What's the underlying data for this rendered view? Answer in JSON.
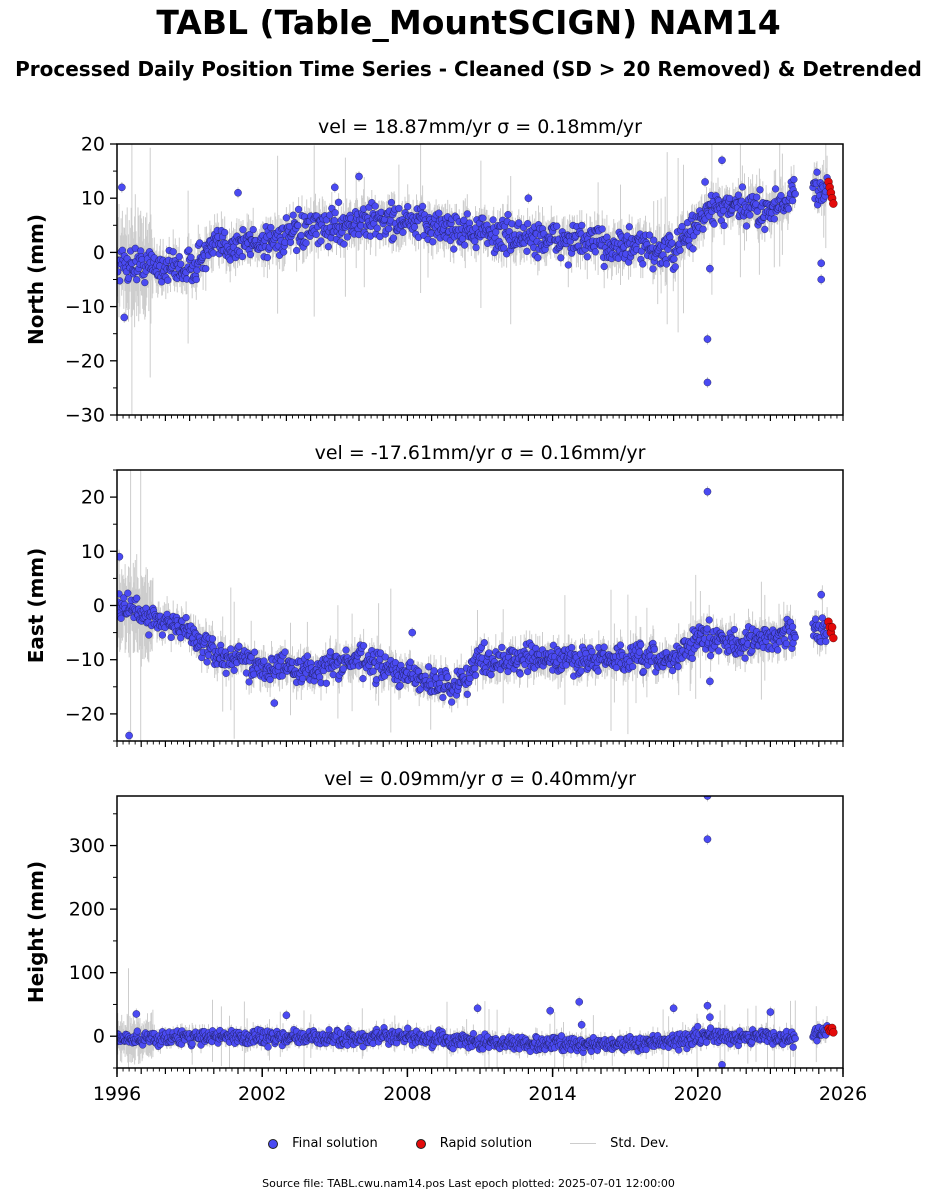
{
  "title": "TABL (Table_MountSCIGN) NAM14",
  "subtitle": "Processed Daily Position Time Series - Cleaned (SD > 20 Removed) & Detrended",
  "legend": {
    "final": "Final solution",
    "rapid": "Rapid solution",
    "std": "Std. Dev."
  },
  "source_note": "Source file: TABL.cwu.nam14.pos  Last epoch plotted: 2025-07-01 12:00:00",
  "colors": {
    "final": "#4a4af2",
    "rapid": "#e30b0b",
    "std": "#c8c8c8"
  },
  "chart_data": [
    {
      "type": "scatter",
      "title": "vel = 18.87mm/yr   σ = 0.18mm/yr",
      "ylabel": "North (mm)",
      "xlim": [
        1996,
        2026
      ],
      "ylim": [
        -30,
        20
      ],
      "yticks": [
        -30,
        -20,
        -10,
        0,
        10,
        20
      ],
      "xticks": [],
      "trend": [
        [
          1996,
          -2
        ],
        [
          1999,
          -3
        ],
        [
          2000,
          1
        ],
        [
          2002,
          2
        ],
        [
          2005,
          5
        ],
        [
          2007,
          6
        ],
        [
          2009,
          5
        ],
        [
          2012,
          3
        ],
        [
          2015,
          2
        ],
        [
          2017,
          1
        ],
        [
          2019,
          0
        ],
        [
          2020.5,
          8
        ],
        [
          2023,
          8
        ],
        [
          2024,
          11
        ],
        [
          2025.5,
          12
        ]
      ],
      "noise": 2.2,
      "outliers": [
        [
          1996.2,
          12
        ],
        [
          1996.3,
          -12
        ],
        [
          2001,
          11
        ],
        [
          2005,
          12
        ],
        [
          2006,
          14
        ],
        [
          2013,
          10
        ],
        [
          2020.3,
          13
        ],
        [
          2020.4,
          -16
        ],
        [
          2020.4,
          -24
        ],
        [
          2020.5,
          -3
        ],
        [
          2021,
          17
        ],
        [
          2025.1,
          -5
        ],
        [
          2025.1,
          -2
        ]
      ],
      "rapid": [
        [
          2025.4,
          13
        ],
        [
          2025.45,
          12
        ],
        [
          2025.5,
          11
        ],
        [
          2025.55,
          10
        ],
        [
          2025.6,
          9
        ]
      ]
    },
    {
      "type": "scatter",
      "title": "vel = -17.61mm/yr   σ = 0.16mm/yr",
      "ylabel": "East (mm)",
      "xlim": [
        1996,
        2026
      ],
      "ylim": [
        -25,
        25
      ],
      "yticks": [
        -20,
        -10,
        0,
        10,
        20
      ],
      "xticks": [],
      "trend": [
        [
          1996,
          0
        ],
        [
          1998,
          -3
        ],
        [
          1999,
          -5
        ],
        [
          2000,
          -9
        ],
        [
          2002,
          -11
        ],
        [
          2004,
          -12
        ],
        [
          2006,
          -10
        ],
        [
          2008,
          -13
        ],
        [
          2010,
          -15
        ],
        [
          2011,
          -10
        ],
        [
          2014,
          -10
        ],
        [
          2017,
          -10
        ],
        [
          2019,
          -10
        ],
        [
          2020,
          -6
        ],
        [
          2022,
          -7
        ],
        [
          2024,
          -5
        ],
        [
          2025.5,
          -4
        ]
      ],
      "noise": 1.8,
      "outliers": [
        [
          1996.1,
          9
        ],
        [
          1996.5,
          -24
        ],
        [
          2002.5,
          -18
        ],
        [
          2008.2,
          -5
        ],
        [
          2020.4,
          21
        ],
        [
          2020.5,
          -14
        ],
        [
          2025.1,
          2
        ]
      ],
      "rapid": [
        [
          2025.4,
          -3
        ],
        [
          2025.45,
          -4
        ],
        [
          2025.5,
          -5
        ],
        [
          2025.55,
          -4
        ],
        [
          2025.6,
          -6
        ]
      ]
    },
    {
      "type": "scatter",
      "title": "vel = 0.09mm/yr   σ = 0.40mm/yr",
      "ylabel": "Height (mm)",
      "xlim": [
        1996,
        2026
      ],
      "ylim": [
        -50,
        378
      ],
      "yticks": [
        0,
        100,
        200,
        300
      ],
      "xticks": [
        1996,
        2002,
        2008,
        2014,
        2020,
        2026
      ],
      "trend": [
        [
          1996,
          -5
        ],
        [
          2000,
          0
        ],
        [
          2004,
          -3
        ],
        [
          2008,
          -2
        ],
        [
          2011,
          -10
        ],
        [
          2014,
          -12
        ],
        [
          2017,
          -12
        ],
        [
          2019,
          -10
        ],
        [
          2020,
          0
        ],
        [
          2023,
          0
        ],
        [
          2024,
          -5
        ],
        [
          2025.5,
          8
        ]
      ],
      "noise": 8,
      "outliers": [
        [
          1996.8,
          35
        ],
        [
          2003,
          33
        ],
        [
          2010.9,
          44
        ],
        [
          2013.9,
          40
        ],
        [
          2015.1,
          54
        ],
        [
          2015.2,
          18
        ],
        [
          2019,
          44
        ],
        [
          2020.4,
          310
        ],
        [
          2020.4,
          378
        ],
        [
          2020.4,
          48
        ],
        [
          2020.5,
          30
        ],
        [
          2023,
          38
        ],
        [
          2021,
          -45
        ]
      ],
      "rapid": [
        [
          2025.4,
          12
        ],
        [
          2025.45,
          8
        ],
        [
          2025.5,
          10
        ],
        [
          2025.55,
          13
        ],
        [
          2025.6,
          6
        ]
      ]
    }
  ]
}
